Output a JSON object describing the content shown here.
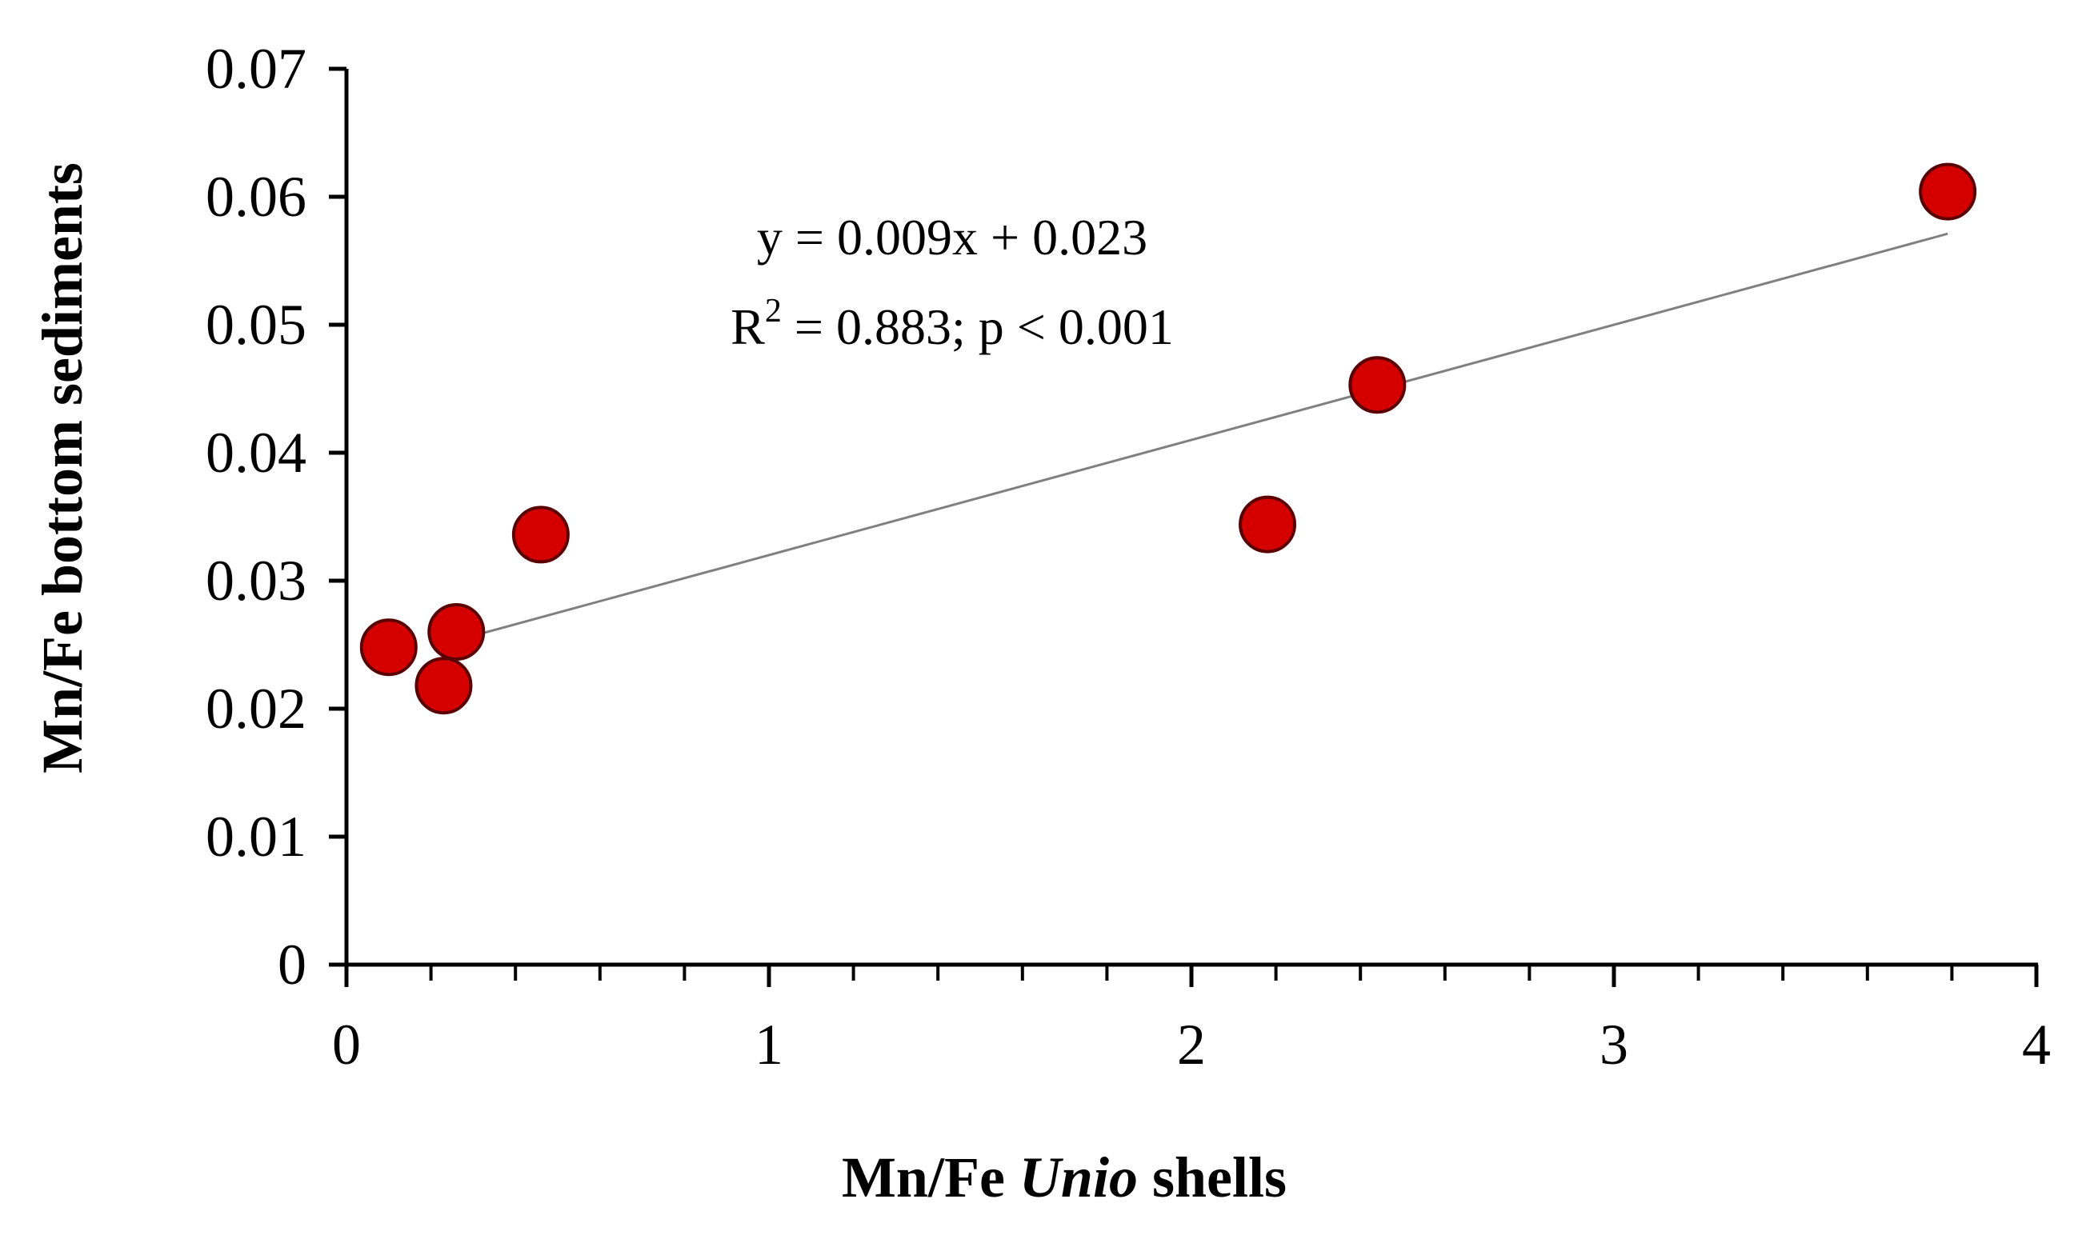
{
  "chart_data": {
    "type": "scatter",
    "xlabel": {
      "prefix": "Mn/Fe ",
      "italic": "Unio",
      "suffix": " shells"
    },
    "ylabel": "Mn/Fe bottom sediments",
    "xlim": [
      0,
      4
    ],
    "ylim": [
      0,
      0.07
    ],
    "x_ticks": [
      0,
      1,
      2,
      3,
      4
    ],
    "x_tick_labels": [
      "0",
      "1",
      "2",
      "3",
      "4"
    ],
    "x_minor_step": 0.2,
    "y_ticks": [
      0,
      0.01,
      0.02,
      0.03,
      0.04,
      0.05,
      0.06,
      0.07
    ],
    "y_tick_labels": [
      "0",
      "0.01",
      "0.02",
      "0.03",
      "0.04",
      "0.05",
      "0.06",
      "0.07"
    ],
    "grid": false,
    "legend": "none",
    "series": [
      {
        "x": [
          0.1,
          0.23,
          0.26,
          0.46,
          2.18,
          2.44,
          3.79
        ],
        "y": [
          0.0248,
          0.0218,
          0.026,
          0.0336,
          0.0344,
          0.0453,
          0.0604
        ],
        "marker": "circle",
        "color": "#d40000",
        "edge_color": "#5a0000"
      }
    ],
    "trendline": {
      "slope": 0.009,
      "intercept": 0.023,
      "x_range": [
        0.26,
        3.79
      ],
      "color": "#808080"
    },
    "annotations": {
      "equation": "y = 0.009x + 0.023",
      "r2_prefix": "R",
      "r2_sup": "2",
      "r2_rest": " = 0.883; p < 0.001"
    }
  }
}
